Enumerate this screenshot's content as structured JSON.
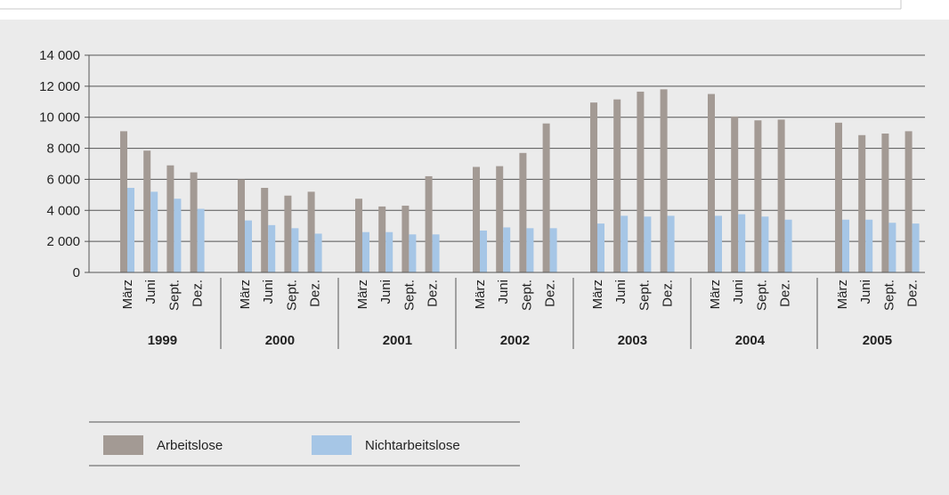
{
  "chart_data": {
    "type": "bar",
    "title": "",
    "xlabel": "",
    "ylabel": "",
    "ylim": [
      0,
      14000
    ],
    "yticks": [
      0,
      2000,
      4000,
      6000,
      8000,
      10000,
      12000,
      14000
    ],
    "ytick_labels": [
      "0",
      "2 000",
      "4 000",
      "6 000",
      "8 000",
      "10 000",
      "12 000",
      "14 000"
    ],
    "grid": "horizontal",
    "legend_position": "bottom-left",
    "months": [
      "März",
      "Juni",
      "Sept.",
      "Dez."
    ],
    "years": [
      "1999",
      "2000",
      "2001",
      "2002",
      "2003",
      "2004",
      "2005"
    ],
    "series": [
      {
        "name": "Arbeitslose",
        "color": "#a39a94",
        "values": [
          9100,
          7850,
          6900,
          6450,
          6000,
          5450,
          4950,
          5200,
          4750,
          4250,
          4300,
          6200,
          6800,
          6850,
          7700,
          9600,
          10950,
          11150,
          11650,
          11800,
          11500,
          10050,
          9800,
          9850,
          9650,
          8850,
          8950,
          9100
        ]
      },
      {
        "name": "Nichtarbeitslose",
        "color": "#a6c6e6",
        "values": [
          5450,
          5200,
          4750,
          4100,
          3350,
          3050,
          2850,
          2500,
          2600,
          2600,
          2450,
          2450,
          2700,
          2900,
          2850,
          2850,
          3150,
          3650,
          3600,
          3650,
          3650,
          3750,
          3600,
          3400,
          3400,
          3400,
          3200,
          3150
        ]
      }
    ]
  },
  "colors": {
    "panel_background": "#ebebeb",
    "gridline": "#555555",
    "axis": "#555555"
  }
}
